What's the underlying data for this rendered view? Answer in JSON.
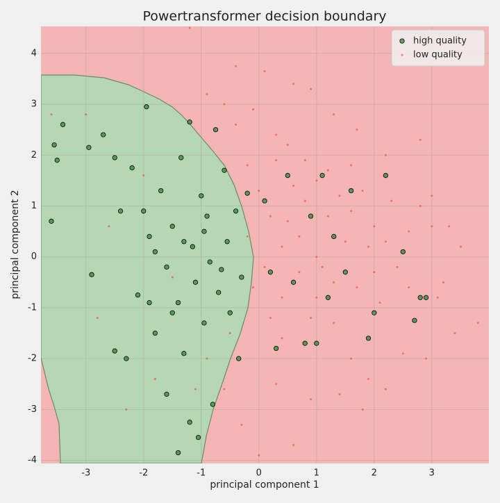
{
  "chart_data": {
    "type": "scatter",
    "title": "Powertransformer decision boundary",
    "x_label": "principal component 1",
    "y_label": "principal component 2",
    "xlim": [
      -3.78,
      3.99
    ],
    "ylim": [
      -4.06,
      4.53
    ],
    "xticks": [
      -3,
      -2,
      -1,
      0,
      1,
      2,
      3
    ],
    "yticks": [
      -4,
      -3,
      -2,
      -1,
      0,
      1,
      2,
      3,
      4
    ],
    "grid": true,
    "legend": "upper right",
    "series": [
      {
        "name": "high quality",
        "color": "#2e8b2e",
        "x": [
          -3.6,
          -3.4,
          -3.5,
          -3.55,
          -2.95,
          -2.7,
          -2.9,
          -2.5,
          -2.4,
          -2.2,
          -2.1,
          -1.95,
          -1.9,
          -1.8,
          -1.7,
          -1.6,
          -1.5,
          -1.4,
          -1.35,
          -1.3,
          -1.2,
          -1.15,
          -1.1,
          -1.0,
          -0.95,
          -0.9,
          -0.85,
          -0.8,
          -0.75,
          -0.7,
          -0.6,
          -0.55,
          -0.5,
          -0.4,
          -0.35,
          -0.3,
          -0.2,
          -1.4,
          -1.05,
          -1.2,
          -2.3,
          -2.5,
          0.1,
          0.2,
          0.3,
          0.5,
          0.6,
          0.8,
          0.9,
          1.0,
          1.1,
          1.2,
          1.3,
          1.5,
          1.6,
          1.9,
          2.0,
          2.2,
          2.5,
          2.7,
          2.8,
          2.9,
          -1.6,
          -1.9,
          -2.0,
          -1.5,
          -1.3,
          -0.95,
          -0.65,
          -1.8
        ],
        "y": [
          0.7,
          2.6,
          1.9,
          2.2,
          2.15,
          2.4,
          -0.35,
          1.95,
          0.9,
          1.75,
          -0.75,
          2.95,
          0.4,
          -1.5,
          1.3,
          -0.2,
          0.6,
          -0.9,
          1.95,
          -1.9,
          2.65,
          0.2,
          -0.5,
          1.2,
          -1.3,
          0.8,
          -0.1,
          -2.9,
          2.5,
          -0.7,
          1.7,
          0.3,
          -1.1,
          0.9,
          -2.0,
          -0.4,
          1.25,
          -3.85,
          -3.55,
          -3.25,
          -2.0,
          -1.85,
          1.1,
          -0.3,
          -1.8,
          1.6,
          -0.5,
          -1.7,
          0.8,
          -1.7,
          1.6,
          -0.8,
          0.4,
          -0.3,
          1.3,
          -1.6,
          -1.1,
          1.6,
          0.1,
          -1.25,
          -0.8,
          -0.8,
          -2.7,
          -0.9,
          0.9,
          -1.1,
          0.3,
          0.5,
          -0.25,
          0.1
        ]
      },
      {
        "name": "low quality",
        "color": "#ff3333",
        "x": [
          0.1,
          -0.1,
          0.3,
          0.5,
          0.8,
          1.0,
          1.2,
          1.4,
          1.6,
          1.8,
          2.0,
          2.2,
          2.4,
          2.6,
          2.8,
          3.0,
          3.2,
          3.5,
          3.8,
          3.4,
          2.9,
          2.5,
          2.2,
          1.9,
          1.6,
          1.3,
          1.0,
          0.7,
          0.4,
          0.2,
          0.0,
          -0.2,
          -0.4,
          -0.6,
          -0.9,
          -1.2,
          -0.4,
          0.6,
          0.9,
          1.3,
          1.7,
          2.2,
          2.8,
          3.0,
          3.3,
          0.3,
          0.6,
          0.0,
          -0.3,
          -0.6,
          -0.9,
          0.9,
          1.4,
          1.8,
          1.1,
          1.5,
          1.7,
          0.5,
          0.8,
          1.2,
          2.1,
          2.3,
          0.2,
          -0.1,
          -0.2,
          -1.5,
          -2.0,
          -2.8,
          -2.6,
          -1.8,
          -1.1,
          -3.0,
          -3.6,
          -3.8,
          -2.3,
          0.4,
          0.7,
          1.0,
          1.3,
          0.9,
          0.6,
          1.9,
          2.6,
          3.1,
          0.3,
          -0.5,
          0.1,
          1.6,
          0.4,
          2.0
        ],
        "y": [
          3.65,
          2.9,
          2.4,
          2.2,
          1.9,
          1.5,
          1.7,
          1.2,
          0.9,
          1.3,
          0.6,
          0.3,
          -0.2,
          0.5,
          1.0,
          0.6,
          -0.5,
          0.2,
          -1.3,
          -1.5,
          -2.0,
          -1.9,
          -2.6,
          -2.4,
          -2.0,
          -1.3,
          -0.8,
          -0.3,
          0.2,
          0.8,
          1.3,
          1.8,
          2.6,
          3.0,
          3.2,
          4.5,
          3.75,
          3.4,
          3.3,
          2.8,
          2.5,
          2.0,
          2.3,
          1.2,
          0.6,
          -2.5,
          -3.7,
          -3.9,
          -3.3,
          -2.6,
          -2.0,
          -2.8,
          -2.7,
          -3.0,
          -0.2,
          0.3,
          -0.6,
          0.7,
          1.1,
          0.8,
          -0.9,
          1.1,
          -1.2,
          -0.6,
          0.4,
          -0.4,
          1.6,
          -1.2,
          0.6,
          -2.4,
          -2.6,
          2.8,
          2.8,
          -1.65,
          -3.0,
          -1.6,
          0.4,
          0.0,
          -0.5,
          -1.2,
          1.4,
          0.2,
          -0.6,
          -0.8,
          1.9,
          -1.5,
          -0.2,
          1.8,
          -0.8,
          -0.3
        ]
      }
    ]
  }
}
